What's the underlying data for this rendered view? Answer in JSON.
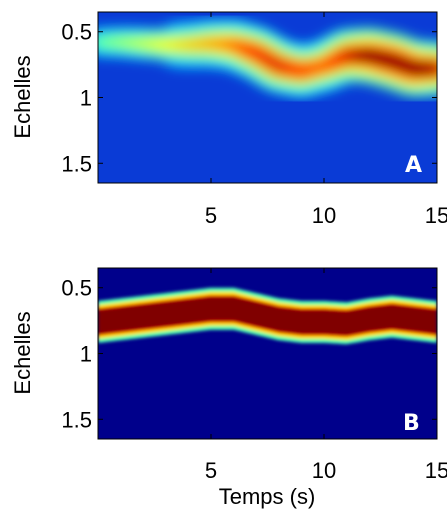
{
  "chart_data": [
    {
      "type": "heatmap",
      "panel_label": "A",
      "ylabel": "Echelles",
      "xlabel": "",
      "xlim": [
        0,
        15
      ],
      "ylim": [
        1.65,
        0.35
      ],
      "x_ticks": [
        "5",
        "10",
        "15"
      ],
      "x_tick_values": [
        5,
        10,
        15
      ],
      "y_ticks": [
        "0.5",
        "1",
        "1.5"
      ],
      "y_tick_values": [
        0.5,
        1,
        1.5
      ],
      "ridge": {
        "x": [
          0,
          1,
          2,
          3,
          4,
          5,
          6,
          7,
          8,
          9,
          10,
          11,
          12,
          13,
          14,
          15
        ],
        "scale": [
          0.58,
          0.58,
          0.59,
          0.6,
          0.6,
          0.59,
          0.6,
          0.66,
          0.76,
          0.8,
          0.76,
          0.68,
          0.68,
          0.72,
          0.78,
          0.78
        ],
        "intensity": [
          0.4,
          0.45,
          0.5,
          0.55,
          0.6,
          0.65,
          0.72,
          0.82,
          0.85,
          0.8,
          0.75,
          0.85,
          0.95,
          1.0,
          1.0,
          0.9
        ]
      },
      "colormap": "jet"
    },
    {
      "type": "heatmap",
      "panel_label": "B",
      "ylabel": "Echelles",
      "xlabel": "Temps (s)",
      "xlim": [
        0,
        15
      ],
      "ylim": [
        1.65,
        0.35
      ],
      "x_ticks": [
        "5",
        "10",
        "15"
      ],
      "x_tick_values": [
        5,
        10,
        15
      ],
      "y_ticks": [
        "0.5",
        "1",
        "1.5"
      ],
      "y_tick_values": [
        0.5,
        1,
        1.5
      ],
      "ridge": {
        "x": [
          0,
          1,
          2,
          3,
          4,
          5,
          6,
          7,
          8,
          9,
          10,
          11,
          12,
          13,
          14,
          15
        ],
        "scale": [
          0.76,
          0.74,
          0.72,
          0.7,
          0.68,
          0.66,
          0.66,
          0.7,
          0.74,
          0.76,
          0.76,
          0.77,
          0.74,
          0.72,
          0.74,
          0.76
        ],
        "intensity": [
          1,
          1,
          1,
          1,
          1,
          1,
          1,
          1,
          1,
          1,
          1,
          1,
          1,
          1,
          1,
          1
        ]
      },
      "colormap": "jet"
    }
  ]
}
